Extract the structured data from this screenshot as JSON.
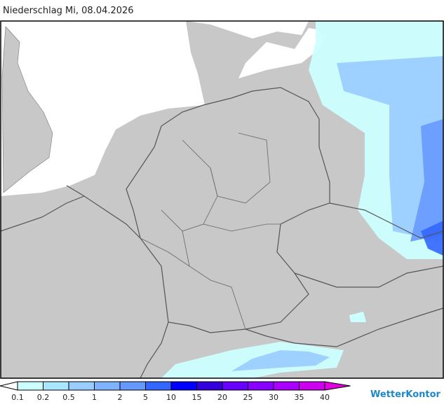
{
  "title": "Niederschlag Mi, 08.04.2026",
  "legend": {
    "labels": [
      "0.1",
      "0.2",
      "0.5",
      "1",
      "2",
      "5",
      "10",
      "15",
      "20",
      "25",
      "30",
      "35",
      "40"
    ],
    "below_color": "#ffffff",
    "colors": [
      "#ccffff",
      "#aae6ff",
      "#99ccff",
      "#80b3ff",
      "#6699ff",
      "#3366ff",
      "#0000ff",
      "#3300dd",
      "#6600ff",
      "#8800ff",
      "#aa00ff",
      "#cc00ee"
    ],
    "above_color": "#e000e0"
  },
  "brand": "WetterKontor"
}
